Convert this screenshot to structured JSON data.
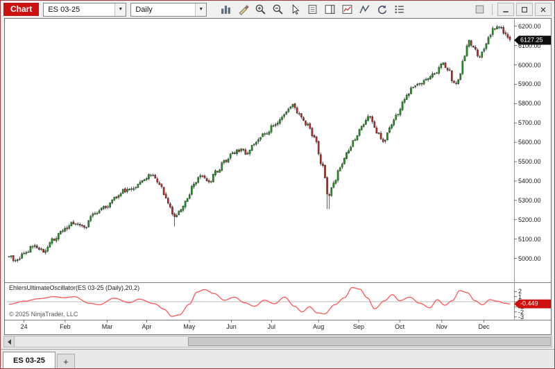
{
  "window": {
    "chart_label": "Chart",
    "instrument_value": "ES 03-25",
    "interval_value": "Daily",
    "toolbar_icons": [
      "chart-style-icon",
      "drawing-tools-icon",
      "zoom-in-icon",
      "zoom-out-icon",
      "pointer-icon",
      "data-box-icon",
      "chart-trader-icon",
      "indicators-icon",
      "strategies-icon",
      "reload-icon",
      "properties-icon"
    ],
    "titlebar_right_icons": [
      "link-icon"
    ],
    "window_buttons": [
      "minimize-button",
      "maximize-button",
      "close-button"
    ]
  },
  "chart": {
    "price_axis_labels": [
      "6200.00",
      "6100.00",
      "6000.00",
      "5900.00",
      "5800.00",
      "5700.00",
      "5600.00",
      "5500.00",
      "5400.00",
      "5300.00",
      "5200.00",
      "5100.00",
      "5000.00"
    ],
    "price_tag": "6127.25",
    "indicator_label": "EhlersUltimateOscillator(ES 03-25 (Daily),20,2)",
    "indicator_axis_labels": [
      "2",
      "1",
      "0",
      "-1",
      "-2",
      "-3"
    ],
    "indicator_tag": "-0.449",
    "copyright": "© 2025 NinjaTrader, LLC",
    "x_axis_labels": [
      {
        "label": "24",
        "t": 0.03
      },
      {
        "label": "Feb",
        "t": 0.112
      },
      {
        "label": "Mar",
        "t": 0.196
      },
      {
        "label": "Apr",
        "t": 0.275
      },
      {
        "label": "May",
        "t": 0.36
      },
      {
        "label": "Jun",
        "t": 0.444
      },
      {
        "label": "Jul",
        "t": 0.524
      },
      {
        "label": "Aug",
        "t": 0.618
      },
      {
        "label": "Sep",
        "t": 0.698
      },
      {
        "label": "Oct",
        "t": 0.78
      },
      {
        "label": "Nov",
        "t": 0.864
      },
      {
        "label": "Dec",
        "t": 0.948
      }
    ]
  },
  "tabs": {
    "active_label": "ES 03-25",
    "add_label": "+"
  },
  "chart_data": {
    "type": "candlestick",
    "title": "ES 03-25 Daily",
    "x_range": [
      "Jan 2024",
      "Dec 2024"
    ],
    "months": [
      "24",
      "Feb",
      "Mar",
      "Apr",
      "May",
      "Jun",
      "Jul",
      "Aug",
      "Sep",
      "Oct",
      "Nov",
      "Dec"
    ],
    "price_axis_range": [
      4880,
      6235
    ],
    "bar_count": 234,
    "last_price": 6127.25,
    "colors": {
      "up": "#1d9b1d",
      "down": "#c62828",
      "wick": "#333333",
      "indicator_line": "#ff5555",
      "price_tag_bg": "#0d0d0d",
      "indicator_tag_bg": "#cf1010"
    },
    "price_path_anchors": [
      [
        0.0,
        5010
      ],
      [
        0.015,
        4985
      ],
      [
        0.03,
        5025
      ],
      [
        0.05,
        5065
      ],
      [
        0.07,
        5040
      ],
      [
        0.09,
        5100
      ],
      [
        0.11,
        5150
      ],
      [
        0.13,
        5185
      ],
      [
        0.15,
        5160
      ],
      [
        0.17,
        5230
      ],
      [
        0.19,
        5260
      ],
      [
        0.21,
        5310
      ],
      [
        0.23,
        5350
      ],
      [
        0.25,
        5370
      ],
      [
        0.27,
        5410
      ],
      [
        0.285,
        5440
      ],
      [
        0.3,
        5390
      ],
      [
        0.315,
        5300
      ],
      [
        0.33,
        5215
      ],
      [
        0.34,
        5240
      ],
      [
        0.355,
        5310
      ],
      [
        0.37,
        5390
      ],
      [
        0.385,
        5430
      ],
      [
        0.4,
        5400
      ],
      [
        0.415,
        5450
      ],
      [
        0.43,
        5500
      ],
      [
        0.445,
        5540
      ],
      [
        0.46,
        5560
      ],
      [
        0.475,
        5545
      ],
      [
        0.49,
        5590
      ],
      [
        0.51,
        5640
      ],
      [
        0.53,
        5690
      ],
      [
        0.55,
        5745
      ],
      [
        0.565,
        5790
      ],
      [
        0.58,
        5745
      ],
      [
        0.595,
        5690
      ],
      [
        0.61,
        5620
      ],
      [
        0.625,
        5480
      ],
      [
        0.638,
        5320
      ],
      [
        0.648,
        5390
      ],
      [
        0.66,
        5460
      ],
      [
        0.675,
        5540
      ],
      [
        0.69,
        5620
      ],
      [
        0.705,
        5690
      ],
      [
        0.72,
        5740
      ],
      [
        0.735,
        5650
      ],
      [
        0.748,
        5600
      ],
      [
        0.76,
        5680
      ],
      [
        0.775,
        5750
      ],
      [
        0.79,
        5830
      ],
      [
        0.805,
        5880
      ],
      [
        0.82,
        5905
      ],
      [
        0.835,
        5930
      ],
      [
        0.85,
        5960
      ],
      [
        0.865,
        6005
      ],
      [
        0.878,
        5975
      ],
      [
        0.888,
        5900
      ],
      [
        0.898,
        5925
      ],
      [
        0.908,
        6030
      ],
      [
        0.918,
        6125
      ],
      [
        0.928,
        6090
      ],
      [
        0.938,
        6030
      ],
      [
        0.948,
        6080
      ],
      [
        0.958,
        6140
      ],
      [
        0.968,
        6190
      ],
      [
        0.978,
        6205
      ],
      [
        0.988,
        6160
      ],
      [
        1.0,
        6127
      ]
    ],
    "wick_extremes": [
      {
        "t": 0.33,
        "price": 5165
      },
      {
        "t": 0.638,
        "price": 5255
      }
    ],
    "indicator": {
      "name": "EhlersUltimateOscillator",
      "params": "ES 03-25 (Daily),20,2",
      "type": "line",
      "range": [
        -3.6,
        3.7
      ],
      "last_value": -0.449,
      "anchors": [
        [
          0.0,
          -0.5
        ],
        [
          0.03,
          0.1
        ],
        [
          0.06,
          0.6
        ],
        [
          0.09,
          1.0
        ],
        [
          0.11,
          0.8
        ],
        [
          0.13,
          1.0
        ],
        [
          0.16,
          -0.3
        ],
        [
          0.18,
          -0.6
        ],
        [
          0.21,
          0.7
        ],
        [
          0.24,
          -0.2
        ],
        [
          0.26,
          0.5
        ],
        [
          0.29,
          -0.4
        ],
        [
          0.31,
          -1.5
        ],
        [
          0.325,
          -2.9
        ],
        [
          0.34,
          -2.6
        ],
        [
          0.36,
          -0.5
        ],
        [
          0.375,
          1.9
        ],
        [
          0.39,
          2.4
        ],
        [
          0.41,
          1.6
        ],
        [
          0.43,
          0.3
        ],
        [
          0.45,
          0.9
        ],
        [
          0.47,
          -0.2
        ],
        [
          0.49,
          -0.9
        ],
        [
          0.51,
          0.3
        ],
        [
          0.53,
          -0.4
        ],
        [
          0.55,
          0.9
        ],
        [
          0.57,
          -0.9
        ],
        [
          0.585,
          -2.0
        ],
        [
          0.6,
          -1.0
        ],
        [
          0.615,
          -2.2
        ],
        [
          0.63,
          -2.4
        ],
        [
          0.65,
          -0.6
        ],
        [
          0.67,
          0.8
        ],
        [
          0.685,
          2.8
        ],
        [
          0.7,
          2.5
        ],
        [
          0.715,
          0.8
        ],
        [
          0.73,
          -1.4
        ],
        [
          0.75,
          0.2
        ],
        [
          0.765,
          1.4
        ],
        [
          0.78,
          0.2
        ],
        [
          0.8,
          0.9
        ],
        [
          0.82,
          -0.3
        ],
        [
          0.84,
          -1.2
        ],
        [
          0.855,
          0.4
        ],
        [
          0.87,
          -0.7
        ],
        [
          0.885,
          0.2
        ],
        [
          0.9,
          2.2
        ],
        [
          0.915,
          1.8
        ],
        [
          0.93,
          0.2
        ],
        [
          0.945,
          -0.6
        ],
        [
          0.96,
          0.4
        ],
        [
          0.975,
          0.1
        ],
        [
          0.99,
          -0.3
        ],
        [
          1.0,
          -0.449
        ]
      ]
    }
  }
}
